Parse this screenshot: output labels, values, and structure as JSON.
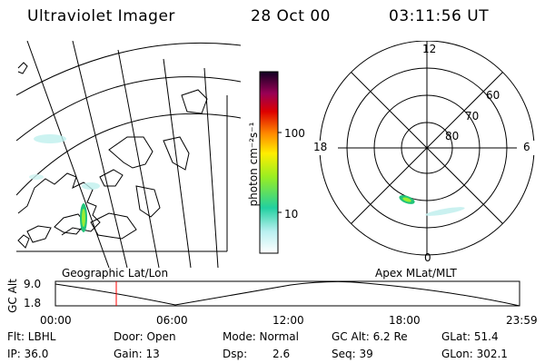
{
  "header": {
    "title": "Ultraviolet Imager",
    "date": "28 Oct 00",
    "time": "03:11:56 UT"
  },
  "colorbar": {
    "label": "photon cm⁻²s⁻¹",
    "ticks": [
      "100",
      "10"
    ]
  },
  "polar": {
    "mlt_labels": {
      "top": "12",
      "left": "18",
      "right": "6",
      "bottom": "0"
    },
    "lat_labels": [
      "60",
      "70",
      "80"
    ]
  },
  "captions": {
    "left": "Geographic Lat/Lon",
    "right": "Apex MLat/MLT"
  },
  "timeline": {
    "axis_label": "GC Alt",
    "y_ticks": [
      "9.0",
      "1.8"
    ],
    "x_ticks": [
      "00:00",
      "06:00",
      "12:00",
      "18:00",
      "23:59"
    ],
    "cursor_color": "#ff0000"
  },
  "status": {
    "flt": "Flt: LBHL",
    "ip": "IP: 36.0",
    "door": "Door: Open",
    "gain": "Gain: 13",
    "mode": "Mode: Normal",
    "dsp_label": "Dsp:",
    "dsp_value": "2.6",
    "gcalt": "GC Alt: 6.2 Re",
    "seq": "Seq: 39",
    "glat": "GLat: 51.4",
    "glon": "GLon: 302.1"
  }
}
